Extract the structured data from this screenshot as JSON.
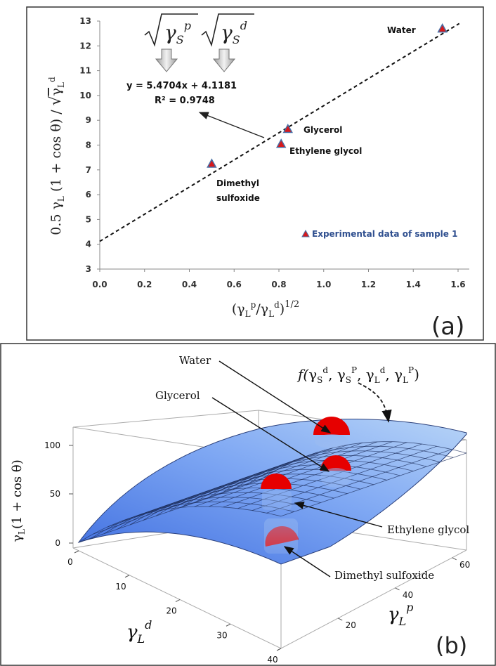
{
  "panel_a": {
    "panel_label": "(a)",
    "ylabel": "0.5 γL (1 + cos θ) / √γL d",
    "ylabel_parts": {
      "main": "0.5 γ",
      "sub_L": "L",
      "mid": " (1 + cos θ) / ",
      "sqrt_arg": "γ",
      "sqrt_sub": "L",
      "sqrt_sup": "d"
    },
    "xlabel_parts": {
      "a": "(γ",
      "sub1": "L",
      "sup1": "p",
      "b": "/γ",
      "sub2": "L",
      "sup2": "d",
      "c": ")",
      "pow": "1/2"
    },
    "equation_line1": "y = 5.4704x + 4.1181",
    "equation_line2": "R² = 0.9748",
    "sqrt_label_p": {
      "base": "γ",
      "sub": "S",
      "sup": "p"
    },
    "sqrt_label_d": {
      "base": "γ",
      "sub": "S",
      "sup": "d"
    },
    "legend_label": "Experimental data of sample 1",
    "marker_color": "#d7191c",
    "marker_edge": "#4a6fa5",
    "legend_color": "#2f4f8f"
  },
  "chart_data": [
    {
      "type": "scatter",
      "xlim": [
        0.0,
        1.6
      ],
      "ylim": [
        3,
        13
      ],
      "xticks": [
        "0.0",
        "0.2",
        "0.4",
        "0.6",
        "0.8",
        "1.0",
        "1.2",
        "1.4",
        "1.6"
      ],
      "yticks": [
        "3",
        "4",
        "5",
        "6",
        "7",
        "8",
        "9",
        "10",
        "11",
        "12",
        "13"
      ],
      "points": [
        {
          "label": "Water",
          "x": 1.53,
          "y": 12.7
        },
        {
          "label": "Glycerol",
          "x": 0.84,
          "y": 8.65
        },
        {
          "label": "Ethylene glycol",
          "x": 0.81,
          "y": 8.05
        },
        {
          "label": "Dimethyl sulfoxide",
          "x": 0.5,
          "y": 7.25
        }
      ],
      "fit": {
        "slope": 5.4704,
        "intercept": 4.1181,
        "r2": 0.9748
      },
      "legend": {
        "name": "Experimental data of sample 1",
        "placement": "bottom-right"
      }
    },
    {
      "type": "surface",
      "panel_label": "(b)",
      "zlabel_parts": {
        "base": "γ",
        "sub": "L",
        "rest": "(1 + cos θ)"
      },
      "x_axis": {
        "base": "γ",
        "sub": "L",
        "sup": "d",
        "ticks": [
          "0",
          "10",
          "20",
          "30",
          "40"
        ]
      },
      "y_axis": {
        "base": "γ",
        "sub": "L",
        "sup": "p",
        "ticks": [
          "20",
          "40",
          "60"
        ]
      },
      "z_ticks": [
        "0",
        "50",
        "100"
      ],
      "function_label": "f(γSd, γSP, γLd, γLP)",
      "function_parts": {
        "f": "f(",
        "g": "γ",
        "s": "S",
        "d": "d",
        "p": "P",
        "l": "L",
        "sep": ", ",
        "close": ")"
      },
      "droplets": [
        {
          "label": "Water"
        },
        {
          "label": "Glycerol"
        },
        {
          "label": "Ethylene glycol"
        },
        {
          "label": "Dimethyl sulfoxide"
        }
      ],
      "surface_color": "#6f9cf0",
      "droplet_color": "#e60000"
    }
  ]
}
